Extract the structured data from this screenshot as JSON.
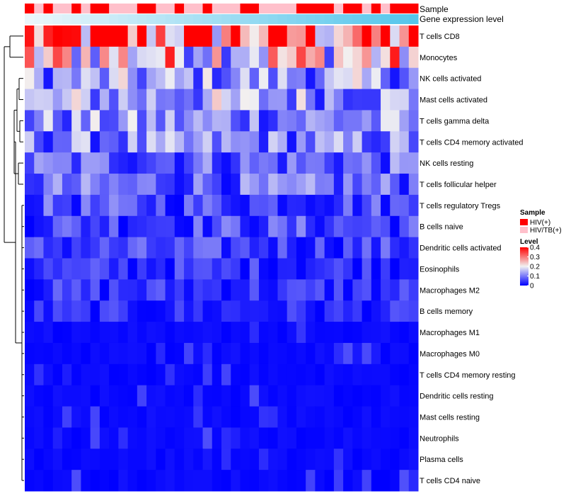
{
  "chart_data": {
    "type": "heatmap",
    "title": "",
    "annotation_labels": {
      "sample": "Sample",
      "gene_level": "Gene expression level"
    },
    "legend": {
      "sample_title": "Sample",
      "sample_entries": [
        {
          "label": "HIV(+)",
          "color": "#FF0000"
        },
        {
          "label": "HIV/TB(+)",
          "color": "#FFC0CB"
        }
      ],
      "level_title": "Level",
      "level_ticks": [
        "0.4",
        "0.3",
        "0.2",
        "0.1",
        "0"
      ],
      "level_tick_values": [
        0.4,
        0.3,
        0.2,
        0.1,
        0
      ],
      "placement": "right"
    },
    "color_scale": {
      "min": 0,
      "max": 0.4,
      "low": "#0000FF",
      "mid": "#F2F2F2",
      "high": "#FF0000",
      "mid_value": 0.2
    },
    "sample_groups": [
      0,
      1,
      0,
      1,
      1,
      0,
      1,
      0,
      0,
      1,
      1,
      1,
      0,
      0,
      1,
      1,
      0,
      1,
      1,
      0,
      1,
      1,
      1,
      0,
      0,
      1,
      1,
      1,
      1,
      0,
      0,
      0,
      0,
      1,
      0,
      0,
      1,
      0,
      1,
      0,
      0,
      0
    ],
    "gene_expression_gradient": [
      "#EBF6FB",
      "#55C6EB"
    ],
    "rows": [
      "T cells CD8",
      "Monocytes",
      "NK cells activated",
      "Mast cells activated",
      "T cells gamma delta",
      "T cells CD4 memory activated",
      "NK cells resting",
      "T cells follicular helper",
      "T cells regulatory  Tregs",
      "B cells naive",
      "Dendritic cells activated",
      "Eosinophils",
      "Macrophages M2",
      "B cells memory",
      "Macrophages M1",
      "Macrophages M0",
      "T cells CD4 memory resting",
      "Dendritic cells resting",
      "Mast cells resting",
      "Neutrophils",
      "Plasma cells",
      "T cells CD4 naive"
    ],
    "row_means": [
      0.31,
      0.22,
      0.12,
      0.13,
      0.11,
      0.1,
      0.08,
      0.08,
      0.06,
      0.06,
      0.05,
      0.04,
      0.04,
      0.03,
      0.02,
      0.02,
      0.01,
      0.01,
      0.01,
      0.0,
      0.01,
      0.01
    ],
    "n_samples": 42,
    "dendrogram": "rows clustered (left)"
  }
}
